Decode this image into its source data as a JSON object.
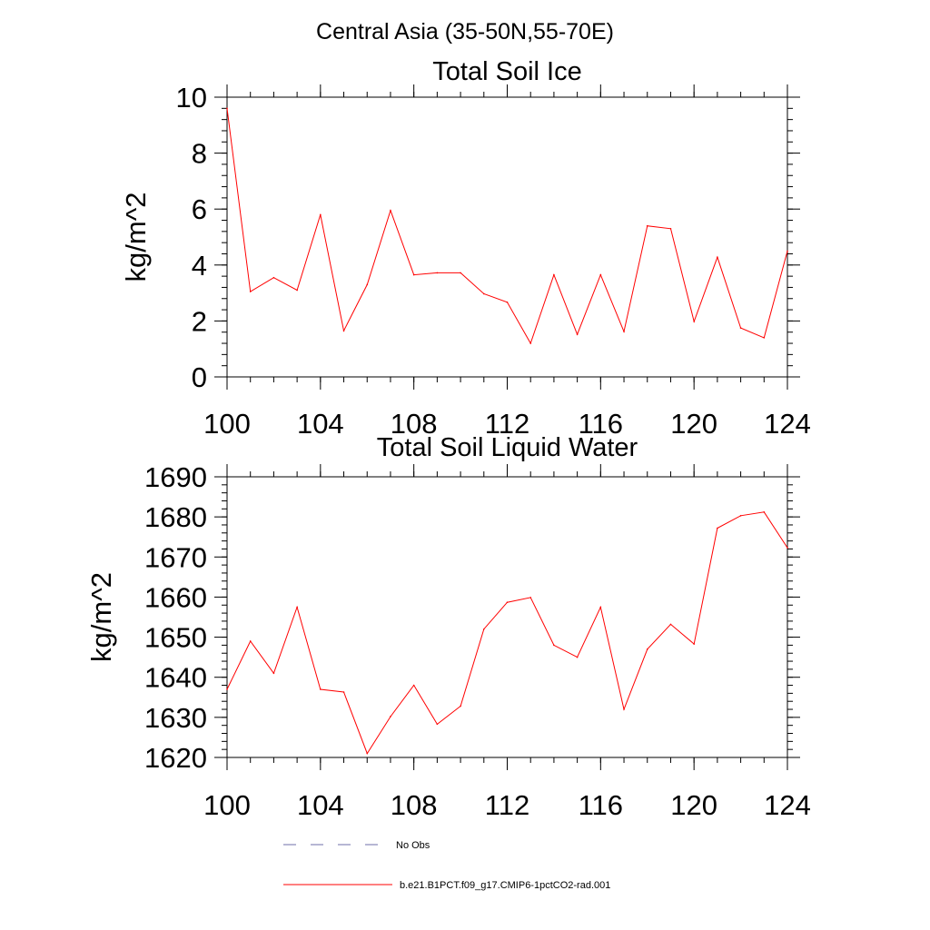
{
  "figure": {
    "title": "Central Asia (35-50N,55-70E)"
  },
  "chart_data": [
    {
      "type": "line",
      "title": "Total Soil Ice",
      "xlabel": "",
      "ylabel": "kg/m^2",
      "xlim": [
        100,
        124
      ],
      "ylim": [
        0,
        10
      ],
      "x_ticks": [
        100,
        104,
        108,
        112,
        116,
        120,
        124
      ],
      "y_ticks": [
        0,
        2,
        4,
        6,
        8,
        10
      ],
      "y_minor_step": 0.4,
      "x_minor_step": 1,
      "grid": false,
      "series": [
        {
          "name": "b.e21.B1PCT.f09_g17.CMIP6-1pctCO2-rad.001",
          "color": "#ff0000",
          "x": [
            100,
            101,
            102,
            103,
            104,
            105,
            106,
            107,
            108,
            109,
            110,
            111,
            112,
            113,
            114,
            115,
            116,
            117,
            118,
            119,
            120,
            121,
            122,
            123,
            124
          ],
          "y": [
            9.6,
            3.05,
            3.55,
            3.1,
            5.8,
            1.65,
            3.3,
            5.95,
            3.65,
            3.72,
            3.72,
            2.97,
            2.67,
            1.2,
            3.65,
            1.52,
            3.65,
            1.62,
            5.4,
            5.3,
            1.98,
            4.28,
            1.75,
            1.4,
            4.5
          ]
        }
      ]
    },
    {
      "type": "line",
      "title": "Total Soil Liquid Water",
      "xlabel": "",
      "ylabel": "kg/m^2",
      "xlim": [
        100,
        124
      ],
      "ylim": [
        1620,
        1690
      ],
      "x_ticks": [
        100,
        104,
        108,
        112,
        116,
        120,
        124
      ],
      "y_ticks": [
        1620,
        1630,
        1640,
        1650,
        1660,
        1670,
        1680,
        1690
      ],
      "y_minor_step": 2,
      "x_minor_step": 1,
      "grid": false,
      "series": [
        {
          "name": "b.e21.B1PCT.f09_g17.CMIP6-1pctCO2-rad.001",
          "color": "#ff0000",
          "x": [
            100,
            101,
            102,
            103,
            104,
            105,
            106,
            107,
            108,
            109,
            110,
            111,
            112,
            113,
            114,
            115,
            116,
            117,
            118,
            119,
            120,
            121,
            122,
            123,
            124
          ],
          "y": [
            1637,
            1649,
            1641,
            1657.5,
            1637,
            1636.3,
            1621,
            1630.2,
            1638,
            1628.3,
            1632.8,
            1652,
            1658.7,
            1659.9,
            1648,
            1645,
            1657.5,
            1632,
            1647,
            1653.2,
            1648.3,
            1677.2,
            1680.3,
            1681.2,
            1672.3
          ]
        }
      ]
    }
  ],
  "legend": {
    "placement": "bottom",
    "items": [
      {
        "label": "No Obs",
        "color": "#6f6fa8",
        "style": "dashed"
      },
      {
        "label": "b.e21.B1PCT.f09_g17.CMIP6-1pctCO2-rad.001",
        "color": "#ff0000",
        "style": "solid"
      }
    ]
  }
}
